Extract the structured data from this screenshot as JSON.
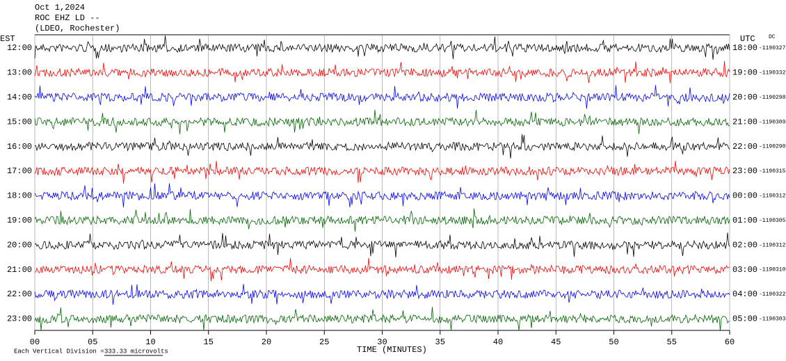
{
  "header": {
    "date": "Oct 1,2024",
    "station": "ROC EHZ LD --",
    "location": "(LDEO, Rochester)"
  },
  "left_axis_title": "EST",
  "right_axis_title": "UTC",
  "dc_title": "DC",
  "rows": [
    {
      "est": "12:00",
      "utc": "18:00",
      "dc": "-1190327",
      "color": "#000000"
    },
    {
      "est": "13:00",
      "utc": "19:00",
      "dc": "-1190332",
      "color": "#ff0000"
    },
    {
      "est": "14:00",
      "utc": "20:00",
      "dc": "-1190298",
      "color": "#0000ff"
    },
    {
      "est": "15:00",
      "utc": "21:00",
      "dc": "-1190309",
      "color": "#006400"
    },
    {
      "est": "16:00",
      "utc": "22:00",
      "dc": "-1190290",
      "color": "#000000"
    },
    {
      "est": "17:00",
      "utc": "23:00",
      "dc": "-1190315",
      "color": "#ff0000"
    },
    {
      "est": "18:00",
      "utc": "00:00",
      "dc": "-1190312",
      "color": "#0000ff"
    },
    {
      "est": "19:00",
      "utc": "01:00",
      "dc": "-1190305",
      "color": "#006400"
    },
    {
      "est": "20:00",
      "utc": "02:00",
      "dc": "-1190312",
      "color": "#000000"
    },
    {
      "est": "21:00",
      "utc": "03:00",
      "dc": "-1190310",
      "color": "#ff0000"
    },
    {
      "est": "22:00",
      "utc": "04:00",
      "dc": "-1190322",
      "color": "#0000ff"
    },
    {
      "est": "23:00",
      "utc": "05:00",
      "dc": "-1190303",
      "color": "#006400"
    }
  ],
  "x_axis": {
    "title": "TIME (MINUTES)",
    "xlim": [
      0,
      60
    ],
    "xticks": [
      {
        "value": 0,
        "label": "00"
      },
      {
        "value": 5,
        "label": "05"
      },
      10,
      15,
      20,
      25,
      30,
      35,
      40,
      45,
      50,
      55,
      60
    ]
  },
  "scale_note": "Each Vertical Division =",
  "scale_value": "333.33 microvolts"
}
